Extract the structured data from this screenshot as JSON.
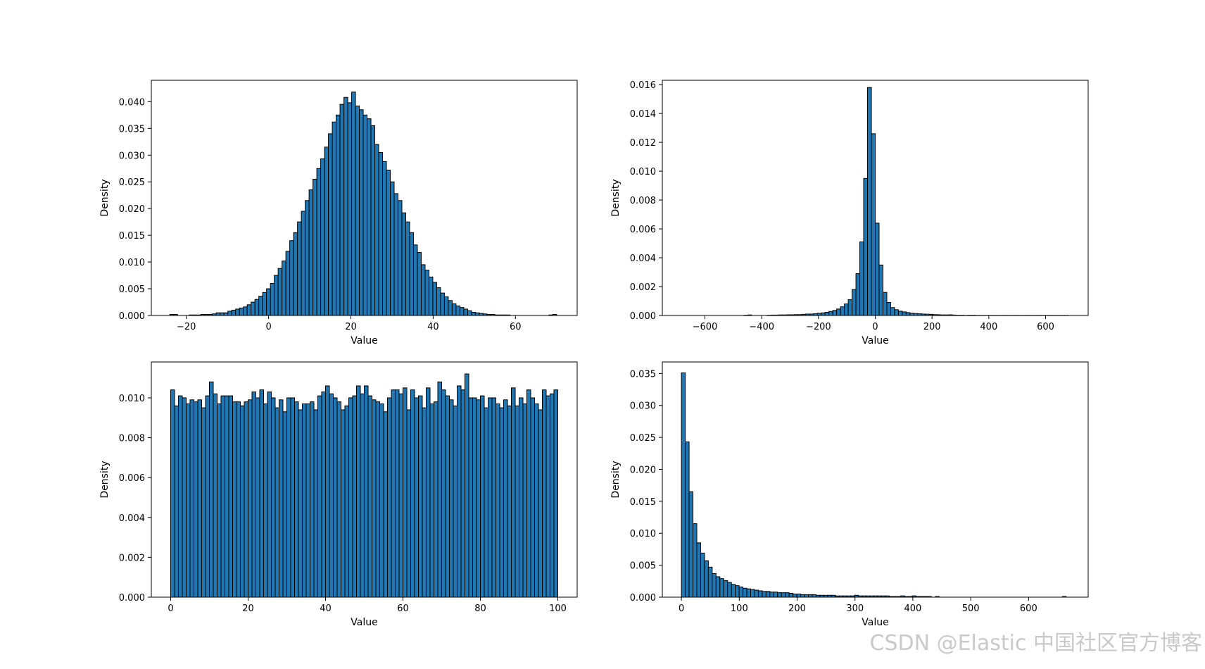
{
  "watermark": "CSDN @Elastic 中国社区官方博客",
  "style": {
    "bar_color": "#1f77b4",
    "edge_color": "#000000"
  },
  "chart_data": [
    {
      "type": "bar",
      "title": "",
      "xlabel": "Value",
      "ylabel": "Density",
      "xlim": [
        -28.5,
        75
      ],
      "ylim": [
        0,
        0.044
      ],
      "xticks": [
        -20,
        0,
        20,
        40,
        60
      ],
      "xtick_labels": [
        "−20",
        "0",
        "20",
        "40",
        "60"
      ],
      "yticks": [
        0,
        0.005,
        0.01,
        0.015,
        0.02,
        0.025,
        0.03,
        0.035,
        0.04
      ],
      "ytick_labels": [
        "0.000",
        "0.005",
        "0.010",
        "0.015",
        "0.020",
        "0.025",
        "0.030",
        "0.035",
        "0.040"
      ],
      "bin_start": -24,
      "bin_width": 0.94,
      "values": [
        0.0002,
        0.0002,
        0,
        0,
        0,
        0.0001,
        0.0001,
        0.0001,
        0.0002,
        0.0002,
        0.0002,
        0.0003,
        0.0005,
        0.0005,
        0.0005,
        0.0008,
        0.001,
        0.0012,
        0.0014,
        0.0016,
        0.002,
        0.0025,
        0.003,
        0.0036,
        0.0043,
        0.005,
        0.006,
        0.0075,
        0.0088,
        0.0102,
        0.012,
        0.014,
        0.0155,
        0.0175,
        0.0195,
        0.0215,
        0.0235,
        0.0255,
        0.0275,
        0.0293,
        0.0315,
        0.034,
        0.0362,
        0.0375,
        0.0395,
        0.0408,
        0.0398,
        0.0418,
        0.0392,
        0.0385,
        0.0375,
        0.0368,
        0.0355,
        0.032,
        0.0305,
        0.0288,
        0.0272,
        0.025,
        0.0228,
        0.0215,
        0.0192,
        0.0175,
        0.0155,
        0.0132,
        0.0118,
        0.0095,
        0.0085,
        0.0072,
        0.0062,
        0.0052,
        0.0042,
        0.0035,
        0.0028,
        0.0022,
        0.0018,
        0.0015,
        0.0012,
        0.0009,
        0.0006,
        0.0005,
        0.0004,
        0.0003,
        0.0002,
        0.0002,
        0.0001,
        0.0001,
        0.0001,
        0.0001,
        0,
        0,
        0,
        0,
        0,
        0,
        0,
        0,
        0,
        0,
        0.0001,
        0.0002
      ]
    },
    {
      "type": "bar",
      "title": "",
      "xlabel": "Value",
      "ylabel": "Density",
      "xlim": [
        -750,
        750
      ],
      "ylim": [
        0,
        0.0163
      ],
      "xticks": [
        -600,
        -400,
        -200,
        0,
        200,
        400,
        600
      ],
      "xtick_labels": [
        "−600",
        "−400",
        "−200",
        "0",
        "200",
        "400",
        "600"
      ],
      "yticks": [
        0,
        0.002,
        0.004,
        0.006,
        0.008,
        0.01,
        0.012,
        0.014,
        0.016
      ],
      "ytick_labels": [
        "0.000",
        "0.002",
        "0.004",
        "0.006",
        "0.008",
        "0.010",
        "0.012",
        "0.014",
        "0.016"
      ],
      "bin_start": -680,
      "bin_width": 13.6,
      "values": [
        0,
        0,
        0,
        0,
        0,
        0,
        0,
        0,
        0,
        0,
        0,
        0,
        0,
        0,
        0,
        0,
        2e-05,
        4e-05,
        0,
        0,
        0,
        0,
        2e-05,
        3e-05,
        3e-05,
        4e-05,
        4e-05,
        5e-05,
        5e-05,
        6e-05,
        6e-05,
        8e-05,
        0.0001,
        0.0001,
        0.00012,
        0.00015,
        0.00018,
        0.00022,
        0.00028,
        0.00035,
        0.00045,
        0.0006,
        0.0008,
        0.0011,
        0.0018,
        0.0029,
        0.0051,
        0.0095,
        0.0158,
        0.0126,
        0.0064,
        0.0035,
        0.0016,
        0.0009,
        0.00055,
        0.0004,
        0.0003,
        0.00025,
        0.0002,
        0.00016,
        0.00014,
        0.00012,
        0.0001,
        9e-05,
        8e-05,
        6e-05,
        5e-05,
        4e-05,
        4e-05,
        5e-05,
        3e-05,
        2e-05,
        2e-05,
        1e-05,
        2e-05,
        2e-05,
        1e-05,
        1e-05,
        1e-05,
        1e-05,
        1e-05,
        1e-05,
        1e-05,
        1e-05,
        1e-05,
        1e-05,
        1e-05,
        1e-05,
        1e-05,
        1e-05,
        1e-05,
        1e-05,
        1e-05,
        1e-05,
        1e-05,
        1e-05,
        1e-05,
        1e-05,
        1e-05,
        1e-05
      ]
    },
    {
      "type": "bar",
      "title": "",
      "xlabel": "Value",
      "ylabel": "Density",
      "xlim": [
        -5,
        105
      ],
      "ylim": [
        0,
        0.0118
      ],
      "xticks": [
        0,
        20,
        40,
        60,
        80,
        100
      ],
      "xtick_labels": [
        "0",
        "20",
        "40",
        "60",
        "80",
        "100"
      ],
      "yticks": [
        0,
        0.002,
        0.004,
        0.006,
        0.008,
        0.01
      ],
      "ytick_labels": [
        "0.000",
        "0.002",
        "0.004",
        "0.006",
        "0.008",
        "0.010"
      ],
      "bin_start": 0,
      "bin_width": 1,
      "values": [
        0.0104,
        0.0096,
        0.0101,
        0.01,
        0.0097,
        0.0099,
        0.0098,
        0.0099,
        0.0095,
        0.0101,
        0.0108,
        0.0102,
        0.0097,
        0.0101,
        0.0101,
        0.0101,
        0.0098,
        0.0098,
        0.0096,
        0.0098,
        0.0099,
        0.0103,
        0.01,
        0.0104,
        0.0097,
        0.0103,
        0.01,
        0.0095,
        0.0099,
        0.0093,
        0.01,
        0.01,
        0.0098,
        0.0094,
        0.0097,
        0.0097,
        0.0098,
        0.0094,
        0.0101,
        0.0103,
        0.0106,
        0.0102,
        0.01,
        0.0098,
        0.0094,
        0.0096,
        0.01,
        0.0101,
        0.0106,
        0.0102,
        0.0106,
        0.0101,
        0.0099,
        0.0098,
        0.0097,
        0.0093,
        0.01,
        0.0104,
        0.0104,
        0.0102,
        0.0105,
        0.0094,
        0.0104,
        0.01,
        0.0101,
        0.0095,
        0.0105,
        0.0097,
        0.0098,
        0.0108,
        0.0104,
        0.0101,
        0.0099,
        0.0096,
        0.0106,
        0.0104,
        0.0112,
        0.01,
        0.01,
        0.0099,
        0.0101,
        0.0095,
        0.01,
        0.01,
        0.0097,
        0.0095,
        0.0099,
        0.0096,
        0.0105,
        0.0096,
        0.01,
        0.0097,
        0.0104,
        0.01,
        0.0097,
        0.0094,
        0.0104,
        0.0101,
        0.0102,
        0.0104
      ]
    },
    {
      "type": "bar",
      "title": "",
      "xlabel": "Value",
      "ylabel": "Density",
      "xlim": [
        -33,
        703
      ],
      "ylim": [
        0,
        0.0368
      ],
      "xticks": [
        0,
        100,
        200,
        300,
        400,
        500,
        600
      ],
      "xtick_labels": [
        "0",
        "100",
        "200",
        "300",
        "400",
        "500",
        "600"
      ],
      "yticks": [
        0,
        0.005,
        0.01,
        0.015,
        0.02,
        0.025,
        0.03,
        0.035
      ],
      "ytick_labels": [
        "0.000",
        "0.005",
        "0.010",
        "0.015",
        "0.020",
        "0.025",
        "0.030",
        "0.035"
      ],
      "bin_start": 0,
      "bin_width": 6.65,
      "values": [
        0.0351,
        0.0243,
        0.0165,
        0.0115,
        0.0085,
        0.0069,
        0.0057,
        0.0047,
        0.0037,
        0.0032,
        0.0029,
        0.0026,
        0.0023,
        0.002,
        0.0018,
        0.0016,
        0.0014,
        0.0013,
        0.0012,
        0.0011,
        0.001,
        0.0009,
        0.0009,
        0.0008,
        0.0008,
        0.0007,
        0.0007,
        0.0007,
        0.0006,
        0.0005,
        0.0005,
        0.0004,
        0.0004,
        0.0004,
        0.0004,
        0.0003,
        0.0003,
        0.0003,
        0.0003,
        0.0003,
        0.0002,
        0.0002,
        0.0002,
        0.0002,
        0.0002,
        0.0003,
        0.0002,
        0.0002,
        0.0002,
        0.0002,
        0.0002,
        0.0002,
        0.0002,
        0.0002,
        0.0001,
        0.0001,
        0.0001,
        0.0002,
        0.0001,
        0.0001,
        0.0002,
        0.0001,
        0.0001,
        0.0001,
        0.0001,
        0,
        0.0001,
        0,
        0,
        0,
        0,
        0,
        0,
        0,
        0,
        0,
        0,
        0,
        0,
        0,
        0,
        0,
        0,
        0,
        0,
        0,
        0,
        0,
        0,
        0,
        0,
        0,
        0,
        0,
        0,
        0,
        0,
        0,
        0,
        0.0001
      ]
    }
  ]
}
